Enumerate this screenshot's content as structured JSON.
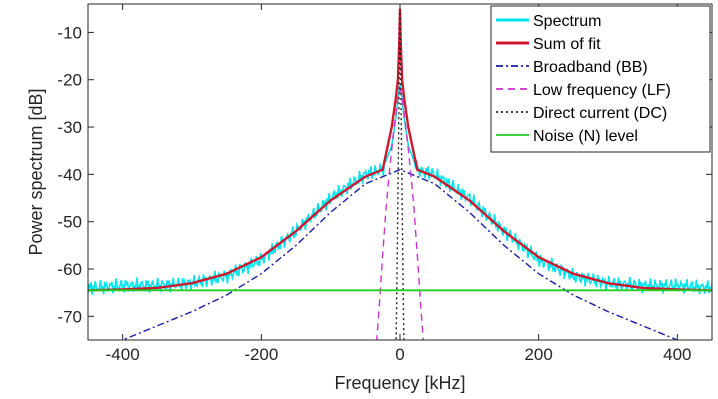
{
  "chart_data": {
    "type": "line",
    "title": "",
    "xlabel": "Frequency [kHz]",
    "ylabel": "Power spectrum [dB]",
    "xlim": [
      -450,
      450
    ],
    "ylim": [
      -75,
      -4
    ],
    "xticks": [
      -400,
      -200,
      0,
      200,
      400
    ],
    "yticks": [
      -70,
      -60,
      -50,
      -40,
      -30,
      -20,
      -10
    ],
    "grid": false,
    "legend_position": "top-right",
    "series": [
      {
        "name": "Spectrum",
        "color": "#00e5ee",
        "style": "solid",
        "x": [
          -450,
          -400,
          -350,
          -300,
          -250,
          -200,
          -150,
          -100,
          -50,
          -25,
          -12,
          -6,
          -3,
          0,
          3,
          6,
          12,
          25,
          50,
          100,
          150,
          200,
          250,
          300,
          350,
          400,
          450
        ],
        "y": [
          -64,
          -63.5,
          -63.5,
          -63,
          -61.5,
          -58,
          -52,
          -45,
          -40,
          -39,
          -34,
          -28,
          -24,
          -21,
          -24,
          -28,
          -34,
          -39,
          -40,
          -45,
          -52,
          -58,
          -61.5,
          -63,
          -63.5,
          -63.5,
          -64
        ]
      },
      {
        "name": "Sum of fit",
        "color": "#cc1a2f",
        "style": "solid",
        "x": [
          -450,
          -400,
          -350,
          -300,
          -250,
          -200,
          -150,
          -100,
          -50,
          -25,
          -12,
          -6,
          -3,
          -1,
          0,
          1,
          3,
          6,
          12,
          25,
          50,
          100,
          150,
          200,
          250,
          300,
          350,
          400,
          450
        ],
        "y": [
          -64.5,
          -64.3,
          -64,
          -63,
          -61,
          -57.5,
          -52,
          -45.5,
          -40.5,
          -39,
          -30,
          -24,
          -20,
          -12,
          -5,
          -12,
          -20,
          -24,
          -30,
          -39,
          -40.5,
          -45.5,
          -52,
          -57.5,
          -61,
          -63,
          -64,
          -64.3,
          -64.5
        ]
      },
      {
        "name": "Broadband (BB)",
        "color": "#1a1aa8",
        "style": "dashdot",
        "x": [
          -450,
          -400,
          -350,
          -300,
          -250,
          -200,
          -150,
          -100,
          -50,
          0,
          50,
          100,
          150,
          200,
          250,
          300,
          350,
          400,
          450
        ],
        "y": [
          -78,
          -75,
          -72,
          -69,
          -65.5,
          -61,
          -55,
          -48,
          -42,
          -39,
          -42,
          -48,
          -55,
          -61,
          -65.5,
          -69,
          -72,
          -75,
          -78
        ]
      },
      {
        "name": "Low frequency (LF)",
        "color": "#cc33cc",
        "style": "dashed",
        "x": [
          -35,
          -30,
          -25,
          -20,
          -15,
          -10,
          -5,
          -2,
          0,
          2,
          5,
          10,
          15,
          20,
          25,
          30,
          35
        ],
        "y": [
          -78,
          -68,
          -57,
          -47,
          -39,
          -32,
          -26,
          -23,
          -22,
          -23,
          -26,
          -32,
          -39,
          -47,
          -57,
          -68,
          -78
        ]
      },
      {
        "name": "Direct current (DC)",
        "color": "#222222",
        "style": "dotted",
        "x": [
          -6,
          -5,
          -4,
          -3,
          -2,
          -1,
          0,
          1,
          2,
          3,
          4,
          5,
          6
        ],
        "y": [
          -78,
          -70,
          -58,
          -45,
          -32,
          -18,
          -5,
          -18,
          -32,
          -45,
          -58,
          -70,
          -78
        ]
      },
      {
        "name": "Noise (N) level",
        "color": "#22cc22",
        "style": "solid",
        "x": [
          -450,
          450
        ],
        "y": [
          -64.5,
          -64.5
        ]
      }
    ]
  }
}
